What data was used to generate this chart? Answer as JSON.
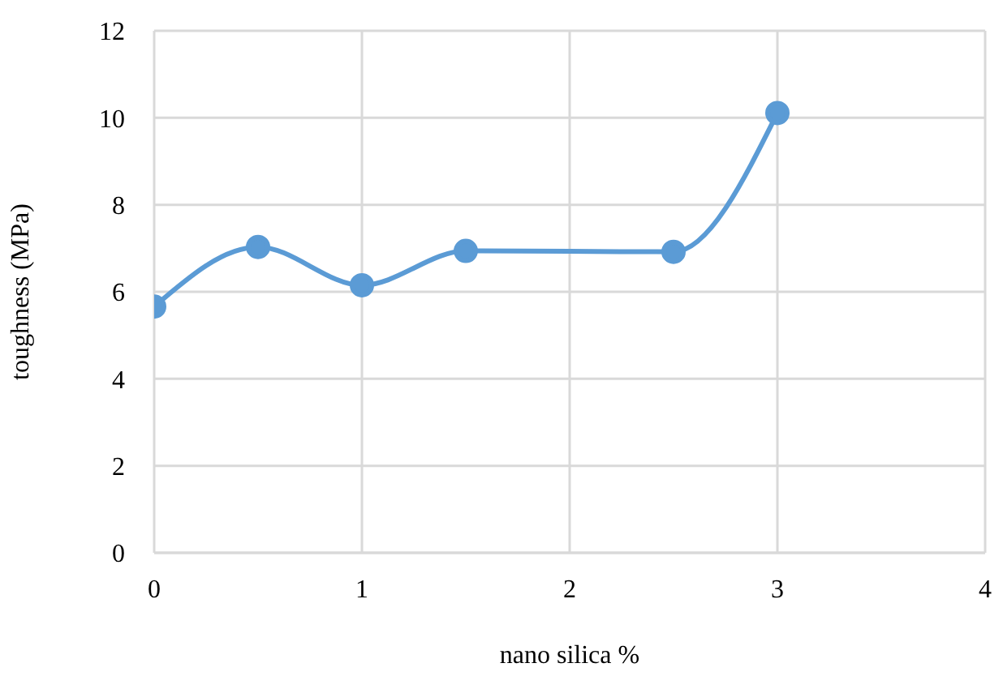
{
  "chart_data": {
    "type": "line",
    "xlabel": "nano silica %",
    "ylabel": "toughness (MPa)",
    "x": [
      0,
      0.5,
      1,
      1.5,
      2.5,
      3
    ],
    "series": [
      {
        "color": "#5b9bd5",
        "values": [
          5.66,
          7.03,
          6.15,
          6.94,
          6.92,
          10.11
        ]
      }
    ],
    "xlim": [
      0,
      4
    ],
    "xticks": [
      0,
      1,
      2,
      3,
      4
    ],
    "ylim": [
      0,
      12
    ],
    "yticks": [
      0,
      2,
      4,
      6,
      8,
      10,
      12
    ],
    "grid": true,
    "marker": "circle",
    "line_style": "solid",
    "legend": false
  }
}
